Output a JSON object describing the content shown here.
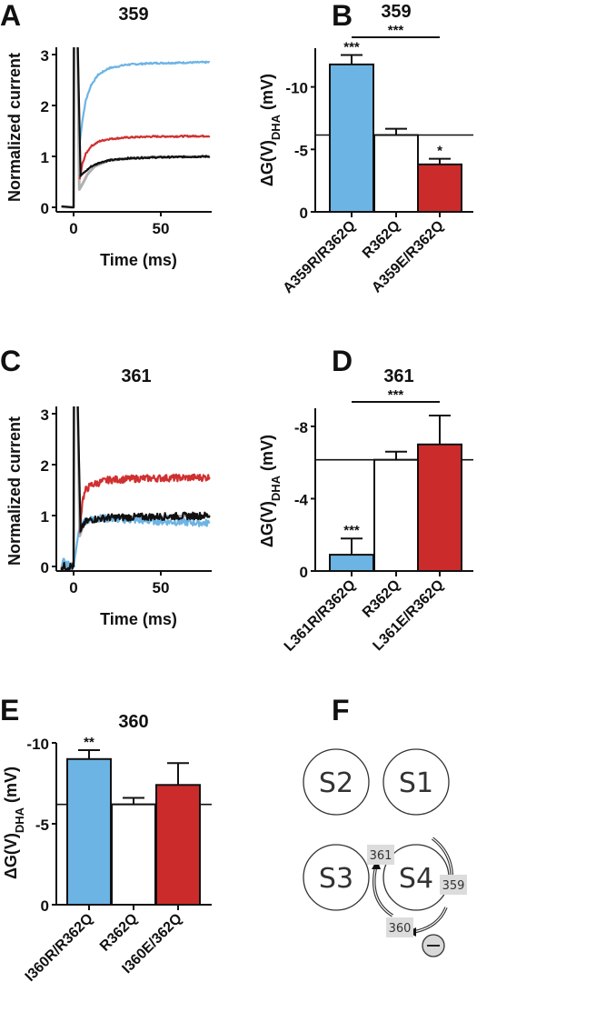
{
  "panels": {
    "A": "A",
    "B": "B",
    "C": "C",
    "D": "D",
    "E": "E",
    "F": "F"
  },
  "chart_data": [
    {
      "panel": "A",
      "type": "line",
      "title": "359",
      "xlabel": "Time (ms)",
      "ylabel": "Normalized current",
      "xlim": [
        -8,
        80
      ],
      "ylim": [
        -0.1,
        3.1
      ],
      "xticks": [
        "0",
        "50"
      ],
      "xtick_values": [
        0,
        50
      ],
      "yticks": [
        "0",
        "1",
        "2",
        "3"
      ],
      "ytick_values": [
        0,
        1,
        2,
        3
      ],
      "series": [
        {
          "color": "#b0b0b0",
          "points": [
            [
              -7,
              0.01
            ],
            [
              -1,
              0
            ],
            [
              0,
              0
            ],
            [
              0.2,
              3.5
            ],
            [
              2.2,
              3.5
            ],
            [
              3.3,
              0.35
            ],
            [
              5,
              0.45
            ],
            [
              8,
              0.65
            ],
            [
              12,
              0.8
            ],
            [
              20,
              0.92
            ],
            [
              40,
              0.98
            ],
            [
              78,
              1.0
            ]
          ]
        },
        {
          "color": "#6cb4e4",
          "points": [
            [
              3.5,
              1.25
            ],
            [
              5,
              1.7
            ],
            [
              7,
              2.1
            ],
            [
              10,
              2.4
            ],
            [
              14,
              2.6
            ],
            [
              20,
              2.73
            ],
            [
              30,
              2.8
            ],
            [
              45,
              2.83
            ],
            [
              78,
              2.85
            ]
          ]
        },
        {
          "color": "#d03030",
          "points": [
            [
              3.5,
              0.55
            ],
            [
              5,
              0.85
            ],
            [
              7,
              1.05
            ],
            [
              10,
              1.2
            ],
            [
              15,
              1.3
            ],
            [
              20,
              1.34
            ],
            [
              30,
              1.37
            ],
            [
              45,
              1.39
            ],
            [
              78,
              1.4
            ]
          ]
        },
        {
          "color": "#111111",
          "points": [
            [
              -7,
              0.02
            ],
            [
              -1,
              0
            ],
            [
              0,
              0
            ],
            [
              0.2,
              3.5
            ],
            [
              2.2,
              3.5
            ],
            [
              4,
              0.62
            ],
            [
              6,
              0.68
            ],
            [
              10,
              0.8
            ],
            [
              15,
              0.88
            ],
            [
              20,
              0.92
            ],
            [
              30,
              0.96
            ],
            [
              45,
              0.98
            ],
            [
              78,
              1.0
            ]
          ]
        }
      ]
    },
    {
      "panel": "B",
      "type": "bar",
      "title": "359",
      "ylabel": {
        "main": "ΔG(V)",
        "sub": "DHA",
        "unit": " (mV)"
      },
      "categories": [
        "A359R/R362Q",
        "R362Q",
        "A359E/R362Q"
      ],
      "values": [
        -11.8,
        -6.15,
        -3.8
      ],
      "errors": [
        0.75,
        0.5,
        0.45
      ],
      "colors": [
        "#6cb4e4",
        "#ffffff",
        "#cc2b2b"
      ],
      "ylim": [
        0,
        -13.1
      ],
      "yticks": [
        "0",
        "-5",
        "-10"
      ],
      "ytick_values": [
        0,
        -5,
        -10
      ],
      "reference_line": -6.15,
      "bar_annotations": [
        "***",
        "",
        "*"
      ],
      "comparisons": [
        {
          "from": 0,
          "to": 2,
          "label": "***"
        }
      ]
    },
    {
      "panel": "C",
      "type": "line",
      "title": "361",
      "xlabel": "Time (ms)",
      "ylabel": "Normalized current",
      "xlim": [
        -8,
        80
      ],
      "ylim": [
        -0.1,
        3.1
      ],
      "xticks": [
        "0",
        "50"
      ],
      "xtick_values": [
        0,
        50
      ],
      "yticks": [
        "0",
        "1",
        "2",
        "3"
      ],
      "ytick_values": [
        0,
        1,
        2,
        3
      ],
      "series": [
        {
          "color": "#b0b0b0",
          "points": [
            [
              -7,
              0
            ],
            [
              -1,
              0
            ],
            [
              0,
              0
            ],
            [
              0.2,
              3.5
            ],
            [
              2.2,
              3.5
            ],
            [
              3.5,
              0.6
            ],
            [
              6,
              0.85
            ],
            [
              10,
              0.92
            ],
            [
              20,
              0.96
            ],
            [
              78,
              1.0
            ]
          ]
        },
        {
          "color": "#6cb4e4",
          "points": [
            [
              -7,
              0.1
            ],
            [
              -1,
              0
            ],
            [
              0,
              0
            ],
            [
              3,
              0.7
            ],
            [
              6,
              0.9
            ],
            [
              15,
              0.95
            ],
            [
              40,
              0.9
            ],
            [
              78,
              0.85
            ]
          ]
        },
        {
          "color": "#d03030",
          "points": [
            [
              3.5,
              0.65
            ],
            [
              5,
              1.3
            ],
            [
              7,
              1.5
            ],
            [
              10,
              1.6
            ],
            [
              20,
              1.7
            ],
            [
              40,
              1.73
            ],
            [
              78,
              1.75
            ]
          ]
        },
        {
          "color": "#111111",
          "points": [
            [
              -7,
              0
            ],
            [
              -1,
              0
            ],
            [
              0,
              0
            ],
            [
              0.2,
              3.5
            ],
            [
              2.2,
              3.5
            ],
            [
              4,
              0.65
            ],
            [
              6,
              0.85
            ],
            [
              10,
              0.92
            ],
            [
              20,
              0.96
            ],
            [
              78,
              1.0
            ]
          ]
        }
      ]
    },
    {
      "panel": "D",
      "type": "bar",
      "title": "361",
      "ylabel": {
        "main": "ΔG(V)",
        "sub": "DHA",
        "unit": " (mV)"
      },
      "categories": [
        "L361R/R362Q",
        "R362Q",
        "L361E/R362Q"
      ],
      "values": [
        -0.9,
        -6.15,
        -7.0
      ],
      "errors": [
        0.9,
        0.45,
        1.6
      ],
      "colors": [
        "#6cb4e4",
        "#ffffff",
        "#cc2b2b"
      ],
      "ylim": [
        0,
        -9
      ],
      "yticks": [
        "0",
        "-4",
        "-8"
      ],
      "ytick_values": [
        0,
        -4,
        -8
      ],
      "reference_line": -6.15,
      "bar_annotations": [
        "***",
        "",
        ""
      ],
      "comparisons": [
        {
          "from": 0,
          "to": 2,
          "label": "***"
        }
      ]
    },
    {
      "panel": "E",
      "type": "bar",
      "title": "360",
      "ylabel": {
        "main": "ΔG(V)",
        "sub": "DHA",
        "unit": " (mV)"
      },
      "categories": [
        "I360R/R362Q",
        "R362Q",
        "I360E/362Q"
      ],
      "values": [
        -9.0,
        -6.2,
        -7.4
      ],
      "errors": [
        0.55,
        0.4,
        1.35
      ],
      "colors": [
        "#6cb4e4",
        "#ffffff",
        "#cc2b2b"
      ],
      "ylim": [
        0,
        -10
      ],
      "yticks": [
        "0",
        "-5",
        "-10"
      ],
      "ytick_values": [
        0,
        -5,
        -10
      ],
      "reference_line": -6.2,
      "bar_annotations": [
        "**",
        "",
        ""
      ],
      "comparisons": []
    }
  ],
  "diagram": {
    "helices": [
      "S2",
      "S1",
      "S3",
      "S4"
    ],
    "residues": [
      "361",
      "359",
      "360"
    ],
    "charge_symbol": "minus",
    "box_color": "#dcdcdc"
  }
}
